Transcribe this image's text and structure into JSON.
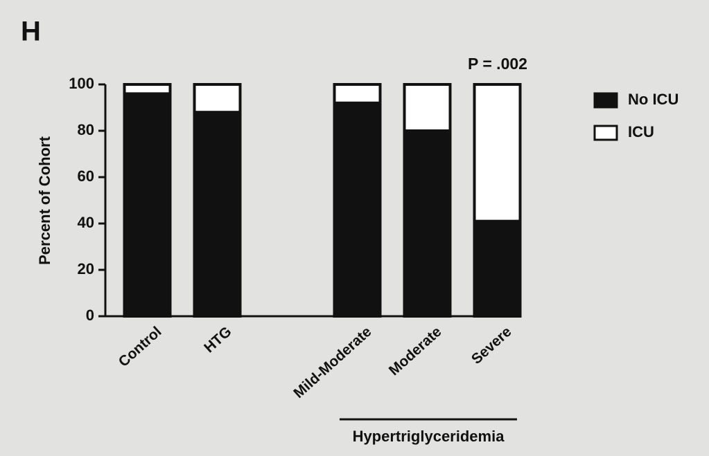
{
  "chart_data": {
    "type": "stacked-bar",
    "panel_label": "H",
    "annotation": "P = .002",
    "y_label": "Percent of Cohort",
    "group_label": "Hypertriglyceridemia",
    "categories": [
      "Control",
      "HTG",
      null,
      "Mild-Moderate",
      "Moderate",
      "Severe"
    ],
    "series": [
      {
        "name": "No ICU",
        "color": "#111111",
        "values": [
          96,
          88,
          null,
          92,
          80,
          41
        ]
      },
      {
        "name": "ICU",
        "color": "#ffffff",
        "values": [
          4,
          12,
          null,
          8,
          20,
          59
        ]
      }
    ],
    "ylim": [
      0,
      100
    ],
    "yticks": [
      0,
      20,
      40,
      60,
      80,
      100
    ],
    "legend": "upper right"
  }
}
